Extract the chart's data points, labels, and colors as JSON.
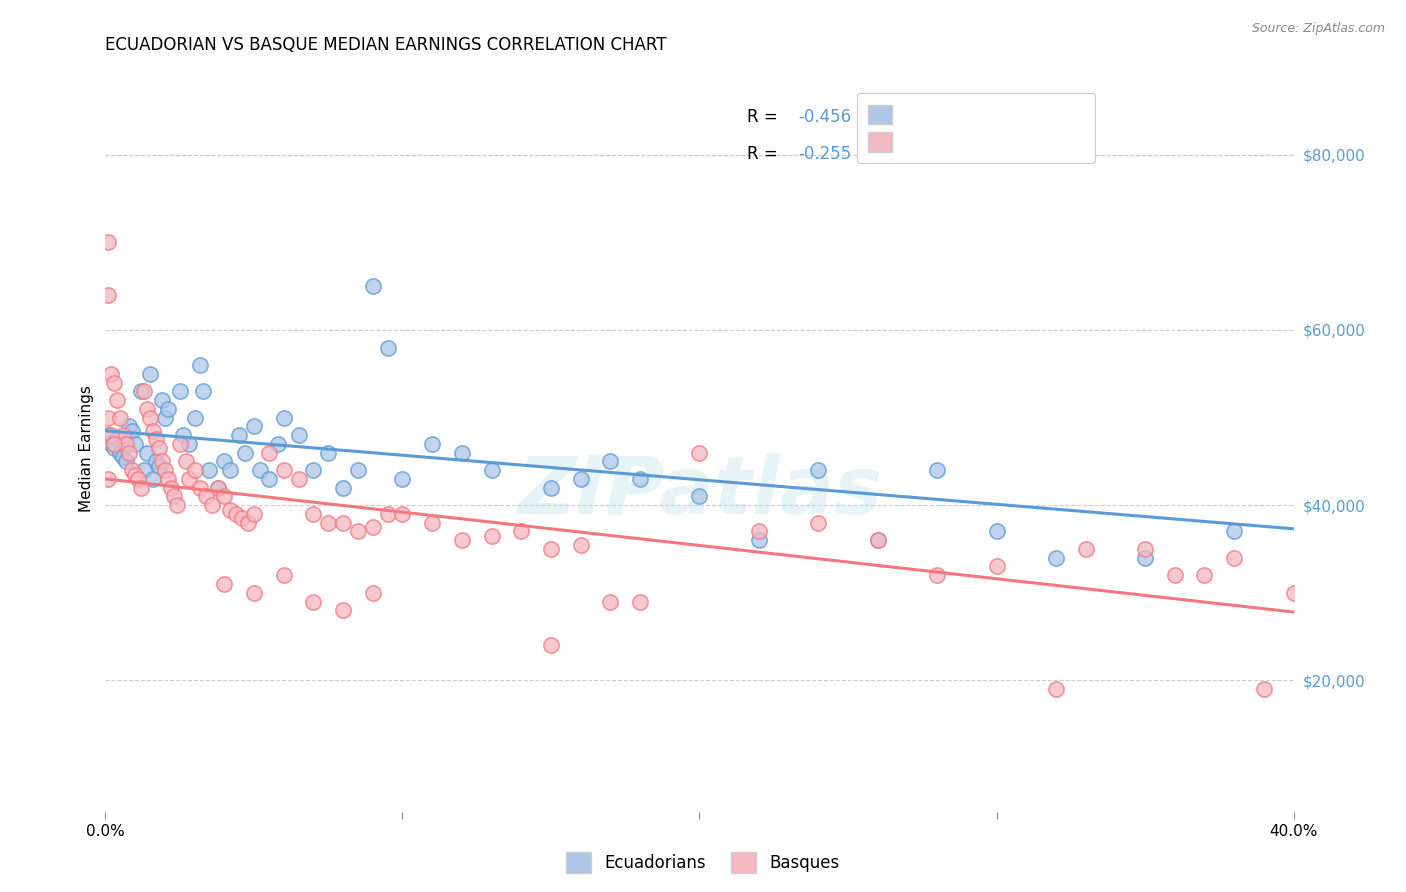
{
  "title": "ECUADORIAN VS BASQUE MEDIAN EARNINGS CORRELATION CHART",
  "source": "Source: ZipAtlas.com",
  "ylabel": "Median Earnings",
  "right_yticks": [
    20000,
    40000,
    60000,
    80000
  ],
  "right_yticklabels": [
    "$20,000",
    "$40,000",
    "$60,000",
    "$80,000"
  ],
  "legend_label_blue": "Ecuadorians",
  "legend_label_pink": "Basques",
  "watermark": "ZIPatlas",
  "blue_color": "#5b9bd5",
  "pink_color": "#f4777f",
  "blue_scatter_color": "#aec6e8",
  "pink_scatter_color": "#f4b8c1",
  "xmin": 0.0,
  "xmax": 0.4,
  "ymin": 5000,
  "ymax": 88000,
  "blue_intercept": 48500,
  "blue_slope": -28000,
  "pink_intercept": 43000,
  "pink_slope": -38000,
  "blue_points": [
    [
      0.001,
      48000
    ],
    [
      0.002,
      47000
    ],
    [
      0.003,
      46500
    ],
    [
      0.004,
      47500
    ],
    [
      0.005,
      46000
    ],
    [
      0.006,
      45500
    ],
    [
      0.007,
      45000
    ],
    [
      0.008,
      49000
    ],
    [
      0.009,
      48500
    ],
    [
      0.01,
      47000
    ],
    [
      0.012,
      53000
    ],
    [
      0.013,
      44000
    ],
    [
      0.014,
      46000
    ],
    [
      0.015,
      55000
    ],
    [
      0.016,
      43000
    ],
    [
      0.017,
      45000
    ],
    [
      0.018,
      44500
    ],
    [
      0.019,
      52000
    ],
    [
      0.02,
      50000
    ],
    [
      0.021,
      51000
    ],
    [
      0.025,
      53000
    ],
    [
      0.026,
      48000
    ],
    [
      0.028,
      47000
    ],
    [
      0.03,
      50000
    ],
    [
      0.032,
      56000
    ],
    [
      0.033,
      53000
    ],
    [
      0.035,
      44000
    ],
    [
      0.038,
      42000
    ],
    [
      0.04,
      45000
    ],
    [
      0.042,
      44000
    ],
    [
      0.045,
      48000
    ],
    [
      0.047,
      46000
    ],
    [
      0.05,
      49000
    ],
    [
      0.052,
      44000
    ],
    [
      0.055,
      43000
    ],
    [
      0.058,
      47000
    ],
    [
      0.06,
      50000
    ],
    [
      0.065,
      48000
    ],
    [
      0.07,
      44000
    ],
    [
      0.075,
      46000
    ],
    [
      0.08,
      42000
    ],
    [
      0.085,
      44000
    ],
    [
      0.09,
      65000
    ],
    [
      0.095,
      58000
    ],
    [
      0.1,
      43000
    ],
    [
      0.11,
      47000
    ],
    [
      0.12,
      46000
    ],
    [
      0.13,
      44000
    ],
    [
      0.15,
      42000
    ],
    [
      0.16,
      43000
    ],
    [
      0.17,
      45000
    ],
    [
      0.18,
      43000
    ],
    [
      0.2,
      41000
    ],
    [
      0.22,
      36000
    ],
    [
      0.24,
      44000
    ],
    [
      0.26,
      36000
    ],
    [
      0.28,
      44000
    ],
    [
      0.3,
      37000
    ],
    [
      0.32,
      34000
    ],
    [
      0.35,
      34000
    ],
    [
      0.38,
      37000
    ]
  ],
  "pink_points": [
    [
      0.001,
      43000
    ],
    [
      0.001,
      50000
    ],
    [
      0.002,
      55000
    ],
    [
      0.003,
      54000
    ],
    [
      0.001,
      70000
    ],
    [
      0.001,
      64000
    ],
    [
      0.004,
      52000
    ],
    [
      0.005,
      50000
    ],
    [
      0.006,
      48000
    ],
    [
      0.007,
      47000
    ],
    [
      0.008,
      46000
    ],
    [
      0.009,
      44000
    ],
    [
      0.01,
      43500
    ],
    [
      0.011,
      43000
    ],
    [
      0.012,
      42000
    ],
    [
      0.013,
      53000
    ],
    [
      0.014,
      51000
    ],
    [
      0.015,
      50000
    ],
    [
      0.016,
      48500
    ],
    [
      0.017,
      47500
    ],
    [
      0.018,
      46500
    ],
    [
      0.019,
      45000
    ],
    [
      0.02,
      44000
    ],
    [
      0.021,
      43000
    ],
    [
      0.022,
      42000
    ],
    [
      0.023,
      41000
    ],
    [
      0.024,
      40000
    ],
    [
      0.002,
      48000
    ],
    [
      0.003,
      47000
    ],
    [
      0.025,
      47000
    ],
    [
      0.027,
      45000
    ],
    [
      0.028,
      43000
    ],
    [
      0.03,
      44000
    ],
    [
      0.032,
      42000
    ],
    [
      0.034,
      41000
    ],
    [
      0.036,
      40000
    ],
    [
      0.038,
      42000
    ],
    [
      0.04,
      41000
    ],
    [
      0.042,
      39500
    ],
    [
      0.044,
      39000
    ],
    [
      0.046,
      38500
    ],
    [
      0.048,
      38000
    ],
    [
      0.05,
      39000
    ],
    [
      0.055,
      46000
    ],
    [
      0.06,
      44000
    ],
    [
      0.065,
      43000
    ],
    [
      0.07,
      39000
    ],
    [
      0.075,
      38000
    ],
    [
      0.08,
      38000
    ],
    [
      0.085,
      37000
    ],
    [
      0.09,
      37500
    ],
    [
      0.095,
      39000
    ],
    [
      0.1,
      39000
    ],
    [
      0.11,
      38000
    ],
    [
      0.12,
      36000
    ],
    [
      0.13,
      36500
    ],
    [
      0.14,
      37000
    ],
    [
      0.15,
      35000
    ],
    [
      0.16,
      35500
    ],
    [
      0.17,
      29000
    ],
    [
      0.18,
      29000
    ],
    [
      0.2,
      46000
    ],
    [
      0.22,
      37000
    ],
    [
      0.24,
      38000
    ],
    [
      0.26,
      36000
    ],
    [
      0.28,
      32000
    ],
    [
      0.3,
      33000
    ],
    [
      0.32,
      19000
    ],
    [
      0.33,
      35000
    ],
    [
      0.35,
      35000
    ],
    [
      0.36,
      32000
    ],
    [
      0.37,
      32000
    ],
    [
      0.38,
      34000
    ],
    [
      0.39,
      19000
    ],
    [
      0.4,
      30000
    ],
    [
      0.15,
      24000
    ],
    [
      0.09,
      30000
    ],
    [
      0.05,
      30000
    ],
    [
      0.04,
      31000
    ],
    [
      0.06,
      32000
    ],
    [
      0.07,
      29000
    ],
    [
      0.08,
      28000
    ]
  ]
}
